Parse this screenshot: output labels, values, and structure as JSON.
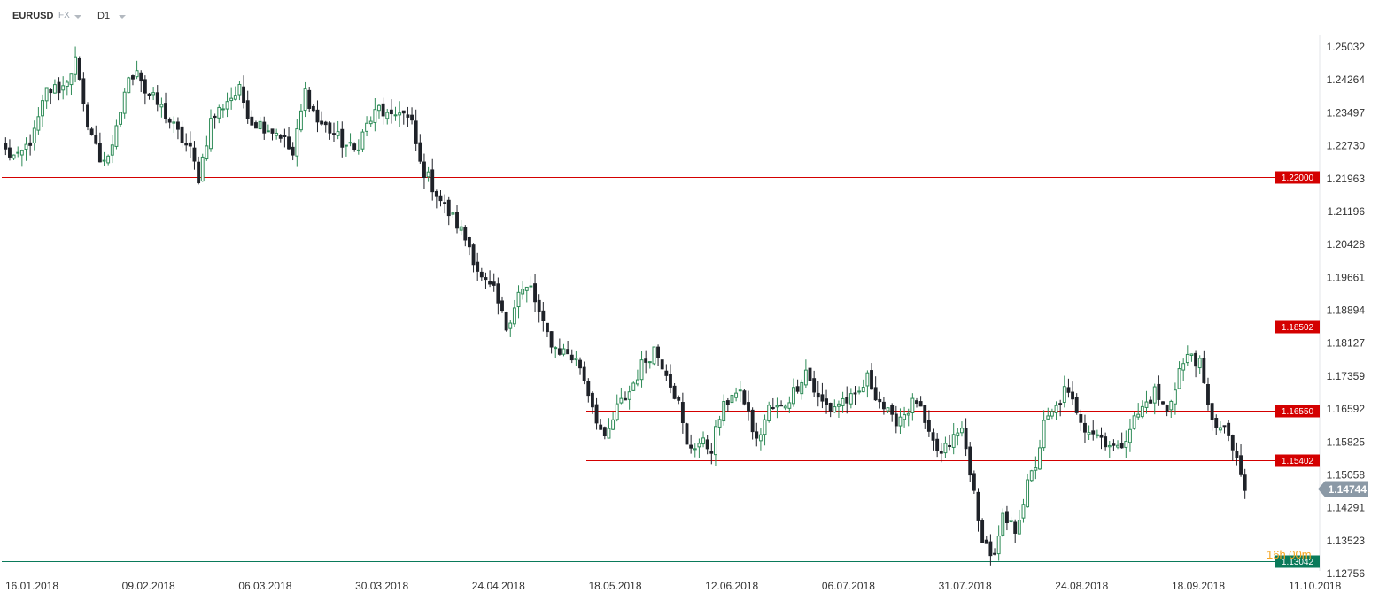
{
  "toolbar": {
    "symbol": "EURUSD",
    "market": "FX",
    "timeframe": "D1"
  },
  "chart_data": {
    "type": "candlestick",
    "symbol": "EURUSD",
    "timeframe": "D1",
    "ylim": [
      1.12756,
      1.25799
    ],
    "y_ticks": [
      "1.25032",
      "1.24264",
      "1.23497",
      "1.22730",
      "1.21963",
      "1.21196",
      "1.20428",
      "1.19661",
      "1.18894",
      "1.18127",
      "1.17359",
      "1.16592",
      "1.15825",
      "1.15058",
      "1.14291",
      "1.13523",
      "1.12756"
    ],
    "x_ticks": [
      "16.01.2018",
      "09.02.2018",
      "06.03.2018",
      "30.03.2018",
      "24.04.2018",
      "18.05.2018",
      "12.06.2018",
      "06.07.2018",
      "31.07.2018",
      "24.08.2018",
      "18.09.2018",
      "11.10.2018"
    ],
    "last_price": "1.14744",
    "countdown": "16h 00m",
    "colors": {
      "up": "#2e8b57",
      "down": "#1f2229",
      "level": "#d40000",
      "current": "#8b99a6",
      "low": "#0a7a5a"
    },
    "levels": [
      {
        "label": "1.22000",
        "value": 1.22,
        "color": "#d40000",
        "full": true
      },
      {
        "label": "1.18502",
        "value": 1.18502,
        "color": "#d40000",
        "full": true
      },
      {
        "label": "1.16550",
        "value": 1.1655,
        "color": "#d40000",
        "full": false
      },
      {
        "label": "1.15402",
        "value": 1.15402,
        "color": "#d40000",
        "full": false
      },
      {
        "label": "1.13042",
        "value": 1.13042,
        "color": "#0a7a5a",
        "full": true
      }
    ],
    "close_path": [
      [
        0,
        1.226
      ],
      [
        3,
        1.224
      ],
      [
        7,
        1.23
      ],
      [
        10,
        1.24
      ],
      [
        14,
        1.241
      ],
      [
        17,
        1.247
      ],
      [
        19,
        1.236
      ],
      [
        23,
        1.224
      ],
      [
        26,
        1.226
      ],
      [
        29,
        1.24
      ],
      [
        32,
        1.246
      ],
      [
        34,
        1.24
      ],
      [
        38,
        1.236
      ],
      [
        42,
        1.23
      ],
      [
        45,
        1.226
      ],
      [
        47,
        1.22
      ],
      [
        50,
        1.233
      ],
      [
        54,
        1.238
      ],
      [
        57,
        1.24
      ],
      [
        60,
        1.233
      ],
      [
        63,
        1.232
      ],
      [
        67,
        1.23
      ],
      [
        70,
        1.225
      ],
      [
        73,
        1.24
      ],
      [
        76,
        1.233
      ],
      [
        79,
        1.231
      ],
      [
        82,
        1.228
      ],
      [
        85,
        1.226
      ],
      [
        88,
        1.232
      ],
      [
        91,
        1.236
      ],
      [
        94,
        1.233
      ],
      [
        96,
        1.236
      ],
      [
        99,
        1.232
      ],
      [
        101,
        1.223
      ],
      [
        104,
        1.218
      ],
      [
        107,
        1.213
      ],
      [
        110,
        1.209
      ],
      [
        113,
        1.204
      ],
      [
        116,
        1.196
      ],
      [
        119,
        1.193
      ],
      [
        122,
        1.185
      ],
      [
        125,
        1.193
      ],
      [
        128,
        1.194
      ],
      [
        131,
        1.185
      ],
      [
        134,
        1.18
      ],
      [
        137,
        1.179
      ],
      [
        140,
        1.176
      ],
      [
        143,
        1.167
      ],
      [
        146,
        1.158
      ],
      [
        149,
        1.166
      ],
      [
        152,
        1.17
      ],
      [
        155,
        1.176
      ],
      [
        158,
        1.18
      ],
      [
        161,
        1.175
      ],
      [
        164,
        1.167
      ],
      [
        166,
        1.157
      ],
      [
        169,
        1.158
      ],
      [
        172,
        1.157
      ],
      [
        174,
        1.164
      ],
      [
        177,
        1.17
      ],
      [
        180,
        1.168
      ],
      [
        183,
        1.158
      ],
      [
        186,
        1.166
      ],
      [
        189,
        1.166
      ],
      [
        192,
        1.17
      ],
      [
        195,
        1.175
      ],
      [
        198,
        1.168
      ],
      [
        201,
        1.166
      ],
      [
        204,
        1.168
      ],
      [
        207,
        1.168
      ],
      [
        210,
        1.173
      ],
      [
        213,
        1.168
      ],
      [
        216,
        1.163
      ],
      [
        219,
        1.165
      ],
      [
        222,
        1.168
      ],
      [
        225,
        1.159
      ],
      [
        228,
        1.155
      ],
      [
        230,
        1.158
      ],
      [
        233,
        1.161
      ],
      [
        235,
        1.152
      ],
      [
        237,
        1.139
      ],
      [
        239,
        1.134
      ],
      [
        241,
        1.131
      ],
      [
        243,
        1.14
      ],
      [
        246,
        1.138
      ],
      [
        249,
        1.148
      ],
      [
        251,
        1.153
      ],
      [
        253,
        1.162
      ],
      [
        256,
        1.166
      ],
      [
        258,
        1.17
      ],
      [
        261,
        1.166
      ],
      [
        263,
        1.162
      ],
      [
        266,
        1.16
      ],
      [
        269,
        1.158
      ],
      [
        271,
        1.156
      ],
      [
        274,
        1.162
      ],
      [
        277,
        1.166
      ],
      [
        280,
        1.17
      ],
      [
        283,
        1.165
      ],
      [
        286,
        1.175
      ],
      [
        289,
        1.179
      ],
      [
        291,
        1.176
      ],
      [
        293,
        1.166
      ],
      [
        296,
        1.161
      ],
      [
        298,
        1.16
      ],
      [
        300,
        1.153
      ],
      [
        302,
        1.147
      ]
    ]
  }
}
